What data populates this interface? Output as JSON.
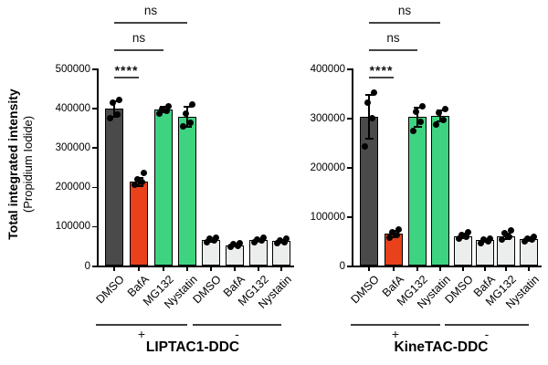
{
  "figure": {
    "y_axis_title": "Total integrated intensity",
    "y_axis_subtitle": "(Propidium Iodide)",
    "colors": {
      "bar_dmso_plus": "#4a4a4a",
      "bar_bafa_plus": "#e8411b",
      "bar_drug_green": "#3ed381",
      "bar_minus": "#eceeed",
      "outline": "#000000",
      "annotation": "#444444"
    }
  },
  "chart_data": [
    {
      "type": "bar",
      "panel_title": "LIPTAC1-DDC",
      "ylabel": "Total integrated intensity (Propidium Iodide)",
      "ylim": [
        0,
        500000
      ],
      "yticks": [
        0,
        100000,
        200000,
        300000,
        400000,
        500000
      ],
      "categories": [
        "DMSO",
        "BafA",
        "MG132",
        "Nystatin",
        "DMSO",
        "BafA",
        "MG132",
        "Nystatin"
      ],
      "groups": [
        {
          "label": "+",
          "bars": [
            0,
            3
          ]
        },
        {
          "label": "-",
          "bars": [
            4,
            7
          ]
        }
      ],
      "values": [
        397000,
        212000,
        395000,
        377000,
        65000,
        52000,
        65000,
        62000
      ],
      "errors": [
        23000,
        13000,
        9000,
        27000,
        7000,
        5000,
        5000,
        6000
      ],
      "bar_color_keys": [
        "bar_dmso_plus",
        "bar_bafa_plus",
        "bar_drug_green",
        "bar_drug_green",
        "bar_minus",
        "bar_minus",
        "bar_minus",
        "bar_minus"
      ],
      "points": [
        [
          373000,
          384000,
          413000,
          420000
        ],
        [
          204000,
          211000,
          219000,
          234000
        ],
        [
          386000,
          392000,
          398000,
          405000
        ],
        [
          352000,
          363000,
          386000,
          408000
        ],
        [
          58000,
          63000,
          68000,
          71000
        ],
        [
          47000,
          50000,
          54000,
          57000
        ],
        [
          60000,
          64000,
          67000,
          70000
        ],
        [
          56000,
          60000,
          64000,
          68000
        ]
      ],
      "significance": [
        {
          "from": 0,
          "to": 1,
          "label": "****",
          "tier": 0
        },
        {
          "from": 0,
          "to": 2,
          "label": "ns",
          "tier": 1
        },
        {
          "from": 0,
          "to": 3,
          "label": "ns",
          "tier": 2
        }
      ]
    },
    {
      "type": "bar",
      "panel_title": "KineTAC-DDC",
      "ylabel": "Total integrated intensity (Propidium Iodide)",
      "ylim": [
        0,
        400000
      ],
      "yticks": [
        0,
        100000,
        200000,
        300000,
        400000
      ],
      "categories": [
        "DMSO",
        "BafA",
        "MG132",
        "Nystatin",
        "DMSO",
        "BafA",
        "MG132",
        "Nystatin"
      ],
      "groups": [
        {
          "label": "+",
          "bars": [
            0,
            3
          ]
        },
        {
          "label": "-",
          "bars": [
            4,
            7
          ]
        }
      ],
      "values": [
        302000,
        64000,
        301000,
        303000,
        60000,
        51000,
        59000,
        54000
      ],
      "errors": [
        47000,
        8000,
        22000,
        13000,
        6000,
        4000,
        8000,
        5000
      ],
      "bar_color_keys": [
        "bar_dmso_plus",
        "bar_bafa_plus",
        "bar_drug_green",
        "bar_drug_green",
        "bar_minus",
        "bar_minus",
        "bar_minus",
        "bar_minus"
      ],
      "points": [
        [
          241000,
          299000,
          330000,
          351000
        ],
        [
          57000,
          62000,
          67000,
          73000
        ],
        [
          273000,
          291000,
          312000,
          323000
        ],
        [
          286000,
          296000,
          310000,
          318000
        ],
        [
          54000,
          58000,
          62000,
          67000
        ],
        [
          46000,
          49000,
          52000,
          55000
        ],
        [
          52000,
          58000,
          65000,
          71000
        ],
        [
          49000,
          52000,
          55000,
          58000
        ]
      ],
      "significance": [
        {
          "from": 0,
          "to": 1,
          "label": "****",
          "tier": 0
        },
        {
          "from": 0,
          "to": 2,
          "label": "ns",
          "tier": 1
        },
        {
          "from": 0,
          "to": 3,
          "label": "ns",
          "tier": 2
        }
      ]
    }
  ]
}
